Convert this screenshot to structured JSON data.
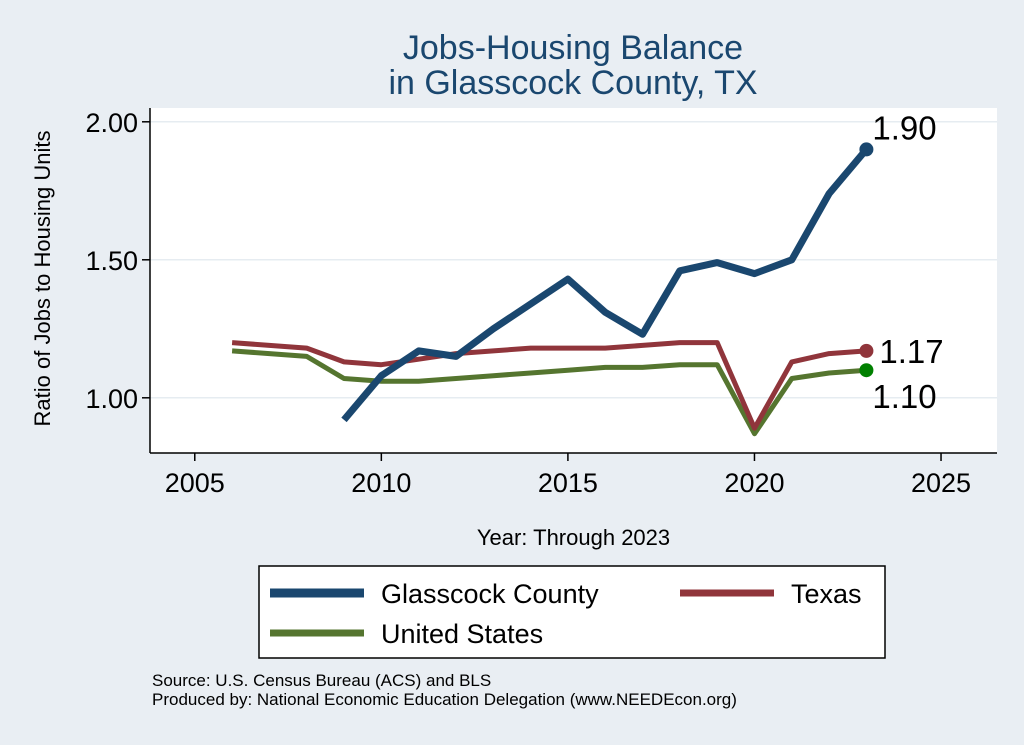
{
  "chart_data": {
    "type": "line",
    "title": [
      "Jobs-Housing Balance",
      "in Glasscock County, TX"
    ],
    "xlabel": "Year: Through 2023",
    "ylabel": "Ratio of Jobs to Housing Units",
    "xlim": [
      2003.8,
      2026.5
    ],
    "ylim": [
      0.8,
      2.05
    ],
    "xticks": [
      2005,
      2010,
      2015,
      2020,
      2025
    ],
    "xtick_labels": [
      "2005",
      "2010",
      "2015",
      "2020",
      "2025"
    ],
    "yticks": [
      1.0,
      1.5,
      2.0
    ],
    "ytick_labels": [
      "1.00",
      "1.50",
      "2.00"
    ],
    "grid": "horizontal",
    "legend_position": "bottom",
    "series": [
      {
        "name": "Glasscock County",
        "color": "#1a476f",
        "x": [
          2009,
          2010,
          2011,
          2012,
          2013,
          2014,
          2015,
          2016,
          2017,
          2018,
          2019,
          2020,
          2021,
          2022,
          2023
        ],
        "values": [
          0.92,
          1.08,
          1.17,
          1.15,
          1.25,
          1.34,
          1.43,
          1.31,
          1.23,
          1.46,
          1.49,
          1.45,
          1.5,
          1.74,
          1.9
        ],
        "end_label": "1.90"
      },
      {
        "name": "Texas",
        "color": "#90353b",
        "x": [
          2006,
          2007,
          2008,
          2009,
          2010,
          2011,
          2012,
          2013,
          2014,
          2015,
          2016,
          2017,
          2018,
          2019,
          2020,
          2021,
          2022,
          2023
        ],
        "values": [
          1.2,
          1.19,
          1.18,
          1.13,
          1.12,
          1.14,
          1.16,
          1.17,
          1.18,
          1.18,
          1.18,
          1.19,
          1.2,
          1.2,
          0.89,
          1.13,
          1.16,
          1.17
        ],
        "end_label": "1.17"
      },
      {
        "name": "United States",
        "color": "#55752f",
        "x": [
          2006,
          2007,
          2008,
          2009,
          2010,
          2011,
          2012,
          2013,
          2014,
          2015,
          2016,
          2017,
          2018,
          2019,
          2020,
          2021,
          2022,
          2023
        ],
        "values": [
          1.17,
          1.16,
          1.15,
          1.07,
          1.06,
          1.06,
          1.07,
          1.08,
          1.09,
          1.1,
          1.11,
          1.11,
          1.12,
          1.12,
          0.87,
          1.07,
          1.09,
          1.1
        ],
        "end_label": "1.10",
        "end_marker_color": "#008000"
      }
    ]
  },
  "source": {
    "line1": "Source: U.S. Census Bureau (ACS) and BLS",
    "line2": "Produced by: National Economic Education Delegation (www.NEEDEcon.org)"
  }
}
